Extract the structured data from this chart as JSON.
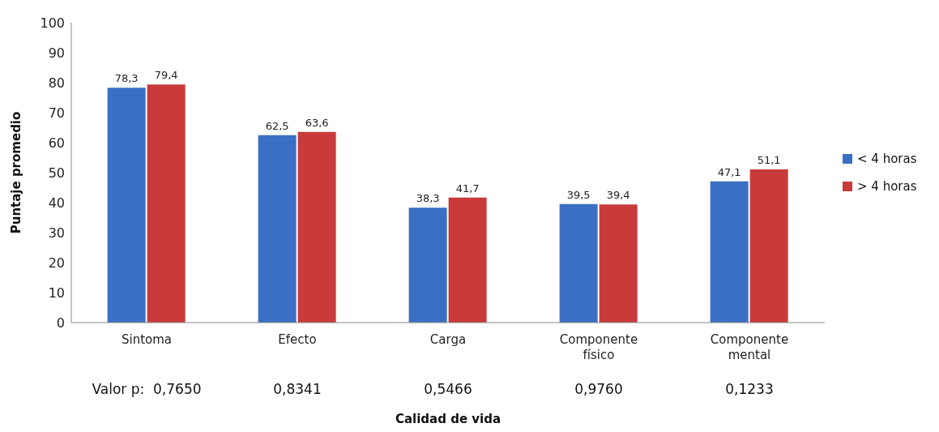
{
  "chart_data": {
    "type": "bar",
    "xlabel": "Calidad de vida",
    "ylabel": "Puntaje promedio",
    "categories": [
      "Sintoma",
      "Efecto",
      "Carga",
      "Componente físico",
      "Componente mental"
    ],
    "series": [
      {
        "name": "< 4 horas",
        "color": "#3a6fc4",
        "values": [
          78.3,
          62.5,
          38.3,
          39.5,
          47.1
        ],
        "value_labels": [
          "78,3",
          "62,5",
          "38,3",
          "39,5",
          "47,1"
        ]
      },
      {
        "name": "> 4 horas",
        "color": "#c93a3a",
        "values": [
          79.4,
          63.6,
          41.7,
          39.4,
          51.1
        ],
        "value_labels": [
          "79,4",
          "63,6",
          "41,7",
          "39,4",
          "51,1"
        ]
      }
    ],
    "ylim": [
      0,
      100
    ],
    "yticks": [
      0,
      10,
      20,
      30,
      40,
      50,
      60,
      70,
      80,
      90,
      100
    ],
    "grid": false,
    "legend": "right",
    "annotations": [
      "Valor p:  0,7650",
      "0,8341",
      "0,5466",
      "0,9760",
      "0,1233"
    ]
  }
}
